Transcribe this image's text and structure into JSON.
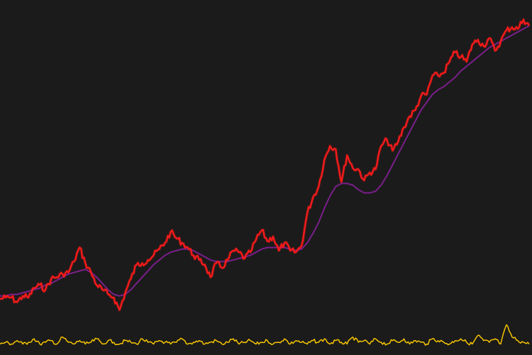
{
  "chart_data": {
    "type": "line",
    "title": "",
    "xlabel": "",
    "ylabel": "",
    "grid": false,
    "legend": "none",
    "axes_visible": false,
    "colors": {
      "background": "#1b1b1b",
      "price": "#ff1a1a",
      "moving_average": "#7a1f8a",
      "volume": "#f5c400"
    },
    "x": [
      0,
      8,
      16,
      24,
      32,
      40,
      48,
      56,
      64,
      72,
      80,
      88,
      96,
      104,
      112,
      120,
      128,
      136,
      144,
      152,
      160,
      168,
      176,
      184,
      192,
      200,
      208,
      216,
      224,
      232,
      240,
      248,
      256,
      264,
      272,
      280,
      288,
      296,
      304,
      312,
      320,
      328,
      336,
      344,
      352,
      360,
      368,
      376,
      384,
      392,
      400,
      408,
      416,
      424,
      432,
      440,
      448,
      456,
      464,
      472,
      480,
      488,
      496,
      504,
      512,
      520,
      528,
      536,
      544,
      552,
      560,
      568,
      576,
      584,
      592,
      600,
      608,
      616,
      624,
      632,
      640,
      648,
      656,
      664,
      672,
      680,
      688,
      696,
      704,
      712,
      720,
      728,
      736,
      744
    ],
    "series": [
      {
        "values": [
          14,
          15,
          15,
          12,
          16,
          15,
          21,
          23,
          20,
          27,
          28,
          30,
          31,
          38,
          47,
          37,
          31,
          23,
          20,
          17,
          15,
          7,
          18,
          27,
          36,
          37,
          39,
          42,
          46,
          50,
          57,
          53,
          50,
          47,
          42,
          39,
          36,
          28,
          37,
          34,
          39,
          45,
          44,
          40,
          44,
          52,
          58,
          51,
          54,
          45,
          50,
          45,
          44,
          48,
          69,
          79,
          86,
          103,
          112,
          110,
          89,
          106,
          98,
          97,
          90,
          95,
          97,
          112,
          116,
          109,
          115,
          124,
          131,
          135,
          144,
          145,
          157,
          157,
          159,
          166,
          172,
          169,
          166,
          177,
          180,
          176,
          181,
          173,
          179,
          186,
          188,
          187,
          193,
          189
        ]
      },
      {
        "values": [
          16,
          16,
          17,
          17,
          18,
          19,
          20,
          21,
          23,
          24,
          26,
          28,
          30,
          31,
          32,
          33,
          31,
          28,
          24,
          20,
          17,
          16,
          17,
          20,
          24,
          28,
          32,
          36,
          39,
          42,
          44,
          45,
          46,
          46,
          45,
          43,
          41,
          39,
          38,
          38,
          38,
          39,
          40,
          41,
          42,
          44,
          46,
          47,
          47,
          47,
          47,
          46,
          45,
          46,
          50,
          56,
          63,
          72,
          80,
          86,
          88,
          88,
          87,
          84,
          82,
          82,
          83,
          87,
          93,
          100,
          107,
          114,
          121,
          128,
          135,
          140,
          145,
          148,
          150,
          153,
          156,
          160,
          163,
          166,
          169,
          172,
          175,
          177,
          179,
          181,
          183,
          185,
          187,
          189
        ]
      },
      {
        "values": [
          3,
          4,
          3,
          5,
          3,
          4,
          6,
          3,
          4,
          5,
          3,
          7,
          4,
          3,
          5,
          3,
          4,
          6,
          3,
          5,
          4,
          3,
          5,
          4,
          3,
          6,
          4,
          3,
          5,
          4,
          3,
          4,
          6,
          3,
          4,
          5,
          3,
          4,
          5,
          3,
          4,
          6,
          3,
          4,
          5,
          3,
          4,
          5,
          3,
          4,
          6,
          3,
          5,
          4,
          3,
          5,
          4,
          6,
          3,
          5,
          4,
          3,
          7,
          4,
          5,
          3,
          6,
          4,
          3,
          5,
          4,
          6,
          3,
          5,
          4,
          3,
          6,
          5,
          4,
          3,
          5,
          6,
          4,
          3,
          8,
          5,
          4,
          6,
          3,
          14,
          7,
          5,
          4,
          3
        ]
      }
    ],
    "ylim": [
      0,
      200
    ],
    "volume_ylim": [
      0,
      15
    ]
  }
}
